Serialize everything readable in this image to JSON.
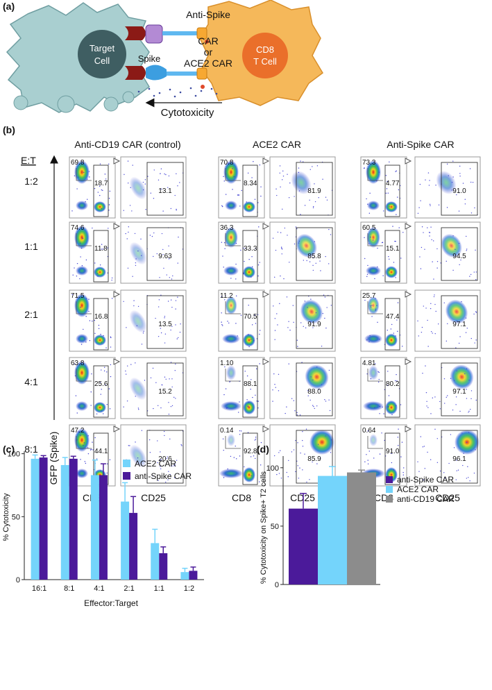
{
  "panel_a": {
    "label": "(a)",
    "car_labels": [
      "Anti-Spike",
      "CAR",
      "or",
      "ACE2 CAR"
    ],
    "target_cell": [
      "Target",
      "Cell"
    ],
    "t_cell": [
      "CD8",
      "T Cell"
    ],
    "spike": "Spike",
    "arrow_label": "Cytotoxicity"
  },
  "panel_b": {
    "label": "(b)",
    "et_label": "E:T",
    "ratios": [
      "1:2",
      "1:1",
      "2:1",
      "4:1",
      "8:1"
    ],
    "y_axis_label": "GFP (Spike)",
    "columns": [
      {
        "title": "Anti-CD19 CAR (control)",
        "x_labels": [
          "CD8",
          "CD25"
        ],
        "rows": [
          {
            "upper": "69.8",
            "gate": "18.7",
            "cd25": "13.1"
          },
          {
            "upper": "74.6",
            "gate": "11.8",
            "cd25": "9.63"
          },
          {
            "upper": "71.5",
            "gate": "16.8",
            "cd25": "13.5"
          },
          {
            "upper": "63.8",
            "gate": "25.6",
            "cd25": "15.2"
          },
          {
            "upper": "47.2",
            "gate": "44.1",
            "cd25": "20.6"
          }
        ]
      },
      {
        "title": "ACE2 CAR",
        "x_labels": [
          "CD8",
          "CD25"
        ],
        "rows": [
          {
            "upper": "70.8",
            "gate": "8.34",
            "cd25": "81.9"
          },
          {
            "upper": "36.3",
            "gate": "33.3",
            "cd25": "85.8"
          },
          {
            "upper": "11.2",
            "gate": "70.5",
            "cd25": "91.9"
          },
          {
            "upper": "1.10",
            "gate": "88.1",
            "cd25": "88.0"
          },
          {
            "upper": "0.14",
            "gate": "92.8",
            "cd25": "85.9"
          }
        ]
      },
      {
        "title": "Anti-Spike CAR",
        "x_labels": [
          "CD8",
          "CD25"
        ],
        "rows": [
          {
            "upper": "73.3",
            "gate": "4.77",
            "cd25": "91.0"
          },
          {
            "upper": "60.5",
            "gate": "15.1",
            "cd25": "94.5"
          },
          {
            "upper": "25.7",
            "gate": "47.4",
            "cd25": "97.1"
          },
          {
            "upper": "4.81",
            "gate": "80.2",
            "cd25": "97.1"
          },
          {
            "upper": "0.64",
            "gate": "91.0",
            "cd25": "96.1"
          }
        ]
      }
    ]
  },
  "chart_data": [
    {
      "type": "bar",
      "panel_label": "(c)",
      "categories": [
        "16:1",
        "8:1",
        "4:1",
        "2:1",
        "1:1",
        "1:2"
      ],
      "series": [
        {
          "name": "ACE2 CAR",
          "color": "#74d4fb",
          "values": [
            96,
            91,
            83,
            62,
            29,
            6
          ],
          "errors": [
            3,
            6,
            12,
            15,
            11,
            3
          ]
        },
        {
          "name": "anti-Spike CAR",
          "color": "#4b1a9a",
          "values": [
            97,
            96,
            83,
            53,
            21,
            7
          ],
          "errors": [
            1.5,
            2,
            9,
            13,
            5,
            3
          ]
        }
      ],
      "ylim": [
        0,
        102
      ],
      "yticks": [
        0,
        50,
        100
      ],
      "y_label": "% Cytotoxicity",
      "x_label": "Effector:Target"
    },
    {
      "type": "bar",
      "panel_label": "(d)",
      "series": [
        {
          "name": "anti-Spike CAR",
          "color": "#4b1a9a",
          "values": [
            65
          ],
          "errors": [
            13
          ]
        },
        {
          "name": "ACE2 CAR",
          "color": "#74d4fb",
          "values": [
            93
          ],
          "errors": [
            8
          ]
        },
        {
          "name": "anti-CD19 CAR",
          "color": "#8c8c8c",
          "values": [
            96
          ],
          "errors": [
            2
          ]
        }
      ],
      "ylim": [
        0,
        110
      ],
      "yticks": [
        0,
        50,
        100
      ],
      "y_label": "% Cytotoxicity on Spike+ T2 cells"
    }
  ]
}
